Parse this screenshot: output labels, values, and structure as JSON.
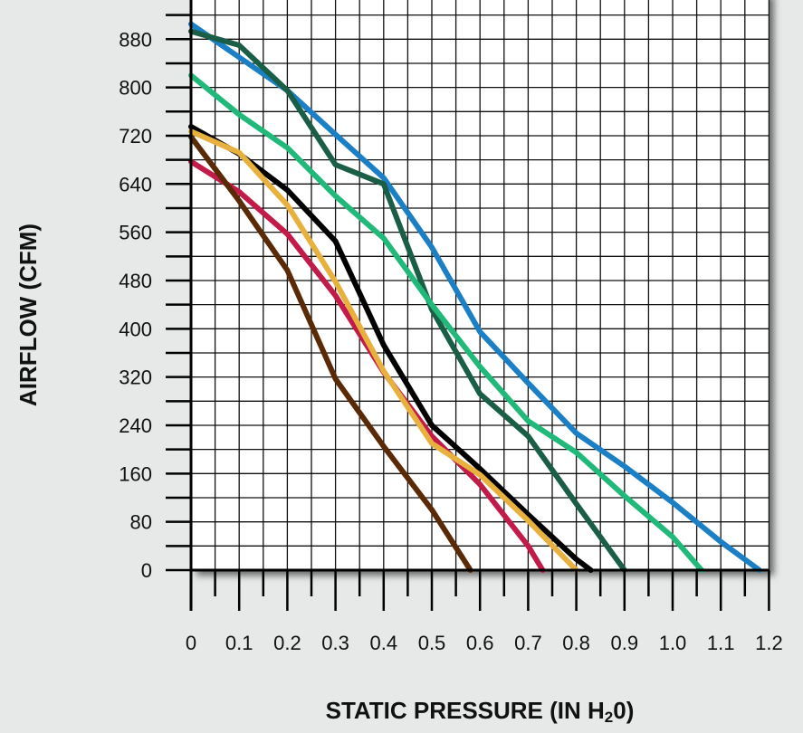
{
  "chart_data": {
    "type": "line",
    "xlabel": "STATIC PRESSURE (IN H",
    "xlabel_sub": "2",
    "xlabel_end": "0)",
    "ylabel": "AIRFLOW (CFM)",
    "xlim": [
      0,
      1.2
    ],
    "ylim": [
      0,
      900
    ],
    "x_ticks": [
      "0",
      "0.1",
      "0.2",
      "0.3",
      "0.4",
      "0.5",
      "0.6",
      "0.7",
      "0.8",
      "0.9",
      "1.0",
      "1.1",
      "1.2"
    ],
    "y_ticks": [
      "0",
      "80",
      "160",
      "240",
      "320",
      "400",
      "480",
      "560",
      "640",
      "720",
      "800",
      "880"
    ],
    "grid": true,
    "legend": "none",
    "series": [
      {
        "color": "#1a7fc4",
        "points": [
          [
            0,
            905
          ],
          [
            0.1,
            850
          ],
          [
            0.2,
            795
          ],
          [
            0.3,
            722
          ],
          [
            0.4,
            650
          ],
          [
            0.5,
            535
          ],
          [
            0.6,
            395
          ],
          [
            0.7,
            310
          ],
          [
            0.8,
            227
          ],
          [
            0.9,
            172
          ],
          [
            1.0,
            112
          ],
          [
            1.1,
            47
          ],
          [
            1.18,
            0
          ]
        ]
      },
      {
        "color": "#1a5e45",
        "points": [
          [
            0,
            893
          ],
          [
            0.1,
            870
          ],
          [
            0.2,
            795
          ],
          [
            0.3,
            672
          ],
          [
            0.4,
            640
          ],
          [
            0.5,
            432
          ],
          [
            0.6,
            292
          ],
          [
            0.7,
            222
          ],
          [
            0.8,
            110
          ],
          [
            0.9,
            0
          ]
        ]
      },
      {
        "color": "#20b97a",
        "points": [
          [
            0,
            820
          ],
          [
            0.1,
            755
          ],
          [
            0.2,
            700
          ],
          [
            0.3,
            620
          ],
          [
            0.4,
            550
          ],
          [
            0.5,
            440
          ],
          [
            0.6,
            337
          ],
          [
            0.7,
            247
          ],
          [
            0.8,
            195
          ],
          [
            0.9,
            123
          ],
          [
            1.0,
            55
          ],
          [
            1.06,
            0
          ]
        ]
      },
      {
        "color": "#000000",
        "points": [
          [
            0,
            735
          ],
          [
            0.1,
            690
          ],
          [
            0.2,
            630
          ],
          [
            0.3,
            545
          ],
          [
            0.4,
            373
          ],
          [
            0.5,
            240
          ],
          [
            0.6,
            168
          ],
          [
            0.7,
            92
          ],
          [
            0.8,
            18
          ],
          [
            0.83,
            0
          ]
        ]
      },
      {
        "color": "#c21b4a",
        "points": [
          [
            0,
            677
          ],
          [
            0.1,
            627
          ],
          [
            0.2,
            557
          ],
          [
            0.3,
            455
          ],
          [
            0.4,
            328
          ],
          [
            0.5,
            222
          ],
          [
            0.6,
            142
          ],
          [
            0.7,
            40
          ],
          [
            0.73,
            0
          ]
        ]
      },
      {
        "color": "#e8b03d",
        "points": [
          [
            0,
            727
          ],
          [
            0.1,
            692
          ],
          [
            0.2,
            605
          ],
          [
            0.3,
            478
          ],
          [
            0.4,
            330
          ],
          [
            0.5,
            210
          ],
          [
            0.6,
            158
          ],
          [
            0.7,
            82
          ],
          [
            0.8,
            0
          ]
        ]
      },
      {
        "color": "#5a2a06",
        "points": [
          [
            0,
            718
          ],
          [
            0.1,
            612
          ],
          [
            0.2,
            497
          ],
          [
            0.3,
            317
          ],
          [
            0.4,
            205
          ],
          [
            0.5,
            100
          ],
          [
            0.58,
            0
          ]
        ]
      }
    ]
  }
}
